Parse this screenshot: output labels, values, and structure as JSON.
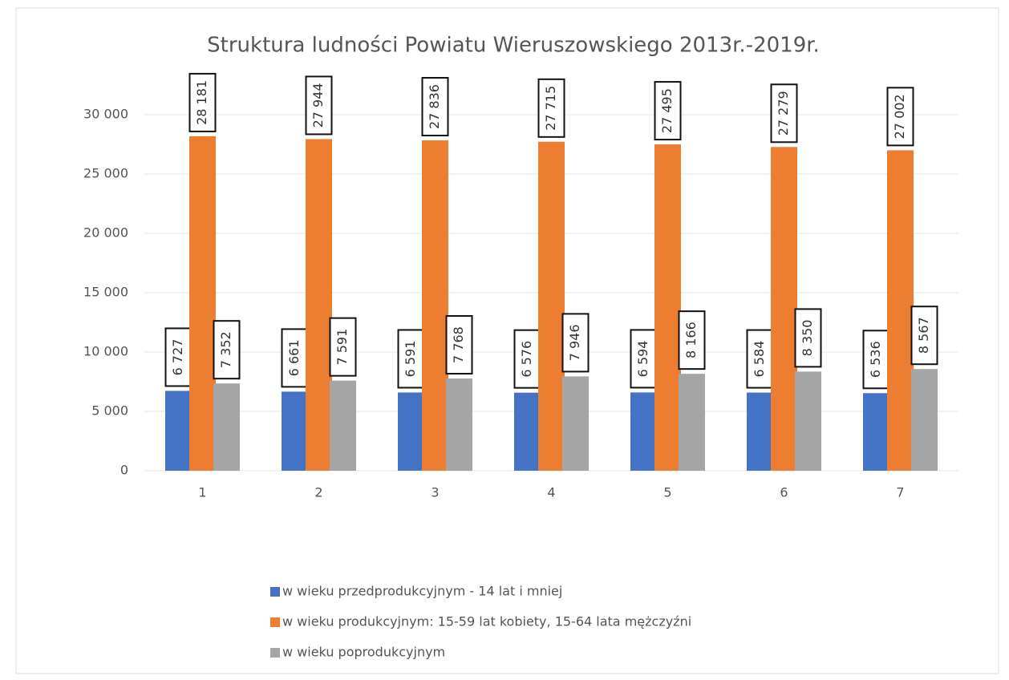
{
  "chart_data": {
    "type": "bar",
    "title": "Struktura ludności Powiatu Wieruszowskiego 2013r.-2019r.",
    "categories": [
      "1",
      "2",
      "3",
      "4",
      "5",
      "6",
      "7"
    ],
    "series": [
      {
        "name": "w wieku przedprodukcyjnym - 14 lat i mniej",
        "color": "#4472c4",
        "values": [
          6727,
          6661,
          6591,
          6576,
          6594,
          6584,
          6536
        ],
        "value_labels": [
          "6 727",
          "6 661",
          "6 591",
          "6 576",
          "6 594",
          "6 584",
          "6 536"
        ]
      },
      {
        "name": "w wieku produkcyjnym: 15-59 lat kobiety, 15-64 lata mężczyźni",
        "color": "#ed7d31",
        "values": [
          28181,
          27944,
          27836,
          27715,
          27495,
          27279,
          27002
        ],
        "value_labels": [
          "28 181",
          "27 944",
          "27 836",
          "27 715",
          "27 495",
          "27 279",
          "27 002"
        ]
      },
      {
        "name": "w wieku poprodukcyjnym",
        "color": "#a5a5a5",
        "values": [
          7352,
          7591,
          7768,
          7946,
          8166,
          8350,
          8567
        ],
        "value_labels": [
          "7 352",
          "7 591",
          "7 768",
          "7 946",
          "8 166",
          "8 350",
          "8 567"
        ]
      }
    ],
    "ylim": [
      0,
      30000
    ],
    "yticks": [
      0,
      {
        "value": 5000,
        "label": "5 000"
      },
      {
        "value": 10000,
        "label": "10 000"
      },
      {
        "value": 15000,
        "label": "15 000"
      },
      {
        "value": 20000,
        "label": "20 000"
      },
      {
        "value": 25000,
        "label": "25 000"
      },
      {
        "value": 30000,
        "label": "30 000"
      }
    ],
    "grid": true,
    "legend": "bottom"
  }
}
